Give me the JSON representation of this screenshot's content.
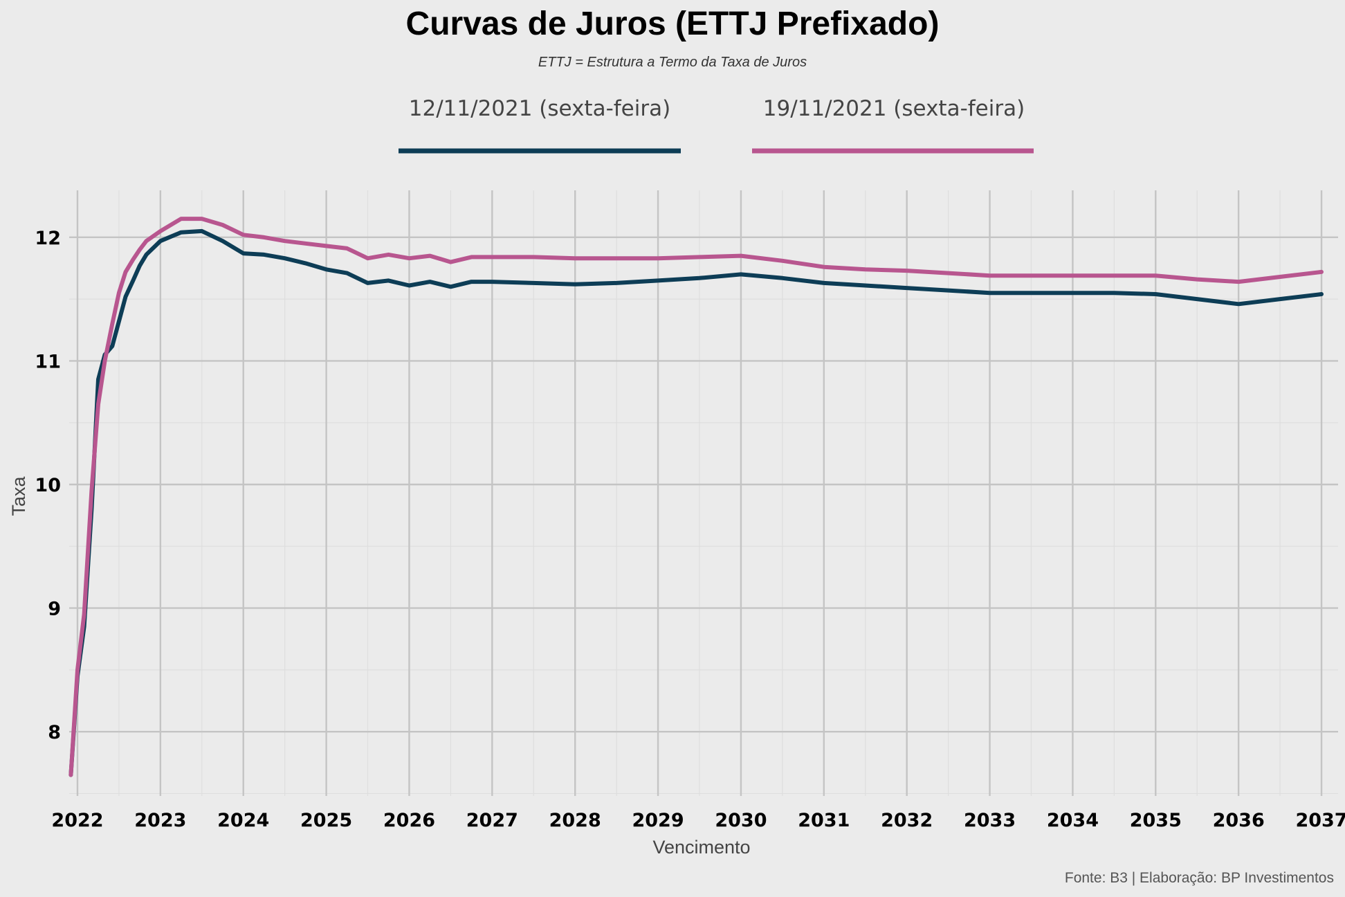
{
  "chart_data": {
    "type": "line",
    "title": "Curvas de Juros (ETTJ Prefixado)",
    "subtitle": "ETTJ = Estrutura a Termo da Taxa de Juros",
    "xlabel": "Vencimento",
    "ylabel": "Taxa",
    "caption": "Fonte: B3 | Elaboração: BP Investimentos",
    "xlim": [
      2021.9,
      2037.2
    ],
    "ylim": [
      7.48,
      12.38
    ],
    "x_ticks": [
      2022,
      2023,
      2024,
      2025,
      2026,
      2027,
      2028,
      2029,
      2030,
      2031,
      2032,
      2033,
      2034,
      2035,
      2036,
      2037
    ],
    "x_tick_labels": [
      "2022",
      "2023",
      "2024",
      "2025",
      "2026",
      "2027",
      "2028",
      "2029",
      "2030",
      "2031",
      "2032",
      "2033",
      "2034",
      "2035",
      "2036",
      "2037"
    ],
    "y_ticks": [
      8,
      9,
      10,
      11,
      12
    ],
    "y_tick_labels": [
      "8",
      "9",
      "10",
      "11",
      "12"
    ],
    "grid": true,
    "legend_position": "top",
    "series": [
      {
        "name": "12/11/2021 (sexta-feira)",
        "color": "#0d3d56",
        "x": [
          2021.92,
          2022.0,
          2022.08,
          2022.17,
          2022.25,
          2022.33,
          2022.42,
          2022.5,
          2022.58,
          2022.67,
          2022.75,
          2022.83,
          2023.0,
          2023.25,
          2023.5,
          2023.75,
          2024.0,
          2024.25,
          2024.5,
          2024.75,
          2025.0,
          2025.25,
          2025.5,
          2025.75,
          2026.0,
          2026.25,
          2026.5,
          2026.75,
          2027.0,
          2027.5,
          2028.0,
          2028.5,
          2029.0,
          2029.5,
          2030.0,
          2030.5,
          2031.0,
          2031.5,
          2032.0,
          2032.5,
          2033.0,
          2033.5,
          2034.0,
          2034.5,
          2035.0,
          2035.5,
          2036.0,
          2036.5,
          2037.0
        ],
        "y": [
          7.65,
          8.45,
          8.85,
          9.8,
          10.85,
          11.05,
          11.12,
          11.32,
          11.52,
          11.65,
          11.77,
          11.86,
          11.97,
          12.04,
          12.05,
          11.97,
          11.87,
          11.86,
          11.83,
          11.79,
          11.74,
          11.71,
          11.63,
          11.65,
          11.61,
          11.64,
          11.6,
          11.64,
          11.64,
          11.63,
          11.62,
          11.63,
          11.65,
          11.67,
          11.7,
          11.67,
          11.63,
          11.61,
          11.59,
          11.57,
          11.55,
          11.55,
          11.55,
          11.55,
          11.54,
          11.5,
          11.46,
          11.5,
          11.54
        ]
      },
      {
        "name": "19/11/2021 (sexta-feira)",
        "color": "#b8568f",
        "x": [
          2021.92,
          2022.0,
          2022.08,
          2022.17,
          2022.25,
          2022.33,
          2022.42,
          2022.5,
          2022.58,
          2022.67,
          2022.75,
          2022.83,
          2023.0,
          2023.25,
          2023.5,
          2023.75,
          2024.0,
          2024.25,
          2024.5,
          2024.75,
          2025.0,
          2025.25,
          2025.5,
          2025.75,
          2026.0,
          2026.25,
          2026.5,
          2026.75,
          2027.0,
          2027.5,
          2028.0,
          2028.5,
          2029.0,
          2029.5,
          2030.0,
          2030.5,
          2031.0,
          2031.5,
          2032.0,
          2032.5,
          2033.0,
          2033.5,
          2034.0,
          2034.5,
          2035.0,
          2035.5,
          2036.0,
          2036.5,
          2037.0
        ],
        "y": [
          7.65,
          8.5,
          8.95,
          9.95,
          10.65,
          11.0,
          11.3,
          11.55,
          11.72,
          11.82,
          11.9,
          11.97,
          12.05,
          12.15,
          12.15,
          12.1,
          12.02,
          12.0,
          11.97,
          11.95,
          11.93,
          11.91,
          11.83,
          11.86,
          11.83,
          11.85,
          11.8,
          11.84,
          11.84,
          11.84,
          11.83,
          11.83,
          11.83,
          11.84,
          11.85,
          11.81,
          11.76,
          11.74,
          11.73,
          11.71,
          11.69,
          11.69,
          11.69,
          11.69,
          11.69,
          11.66,
          11.64,
          11.68,
          11.72
        ]
      }
    ]
  }
}
